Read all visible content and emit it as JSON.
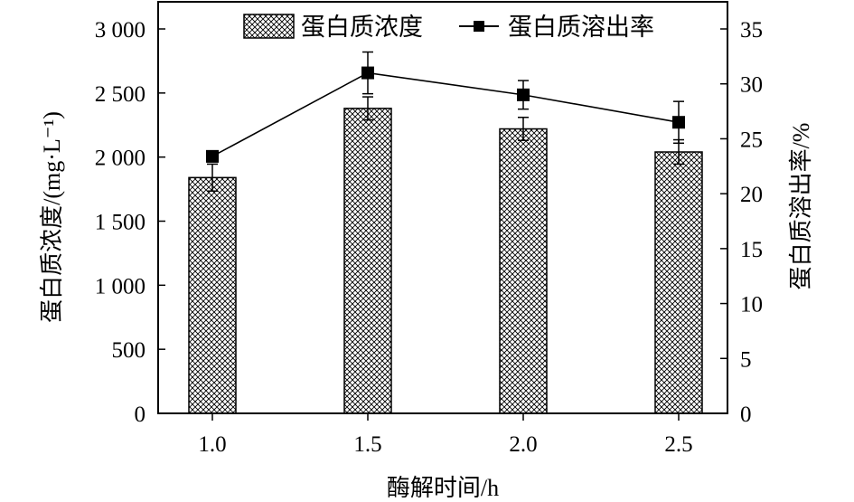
{
  "chart_data": {
    "type": "bar+line",
    "categories": [
      "1.0",
      "1.5",
      "2.0",
      "2.5"
    ],
    "xlabel": "酶解时间/h",
    "ylabel_left": "蛋白质浓度/(mg·L⁻¹)",
    "ylabel_right": "蛋白质溶出率/%",
    "ylim_left": [
      0,
      3000
    ],
    "ylim_right": [
      0,
      35
    ],
    "yticks_left": [
      "0",
      "500",
      "1 000",
      "1 500",
      "2 000",
      "2 500",
      "3 000"
    ],
    "yticks_right": [
      "0",
      "5",
      "10",
      "15",
      "20",
      "25",
      "30",
      "35"
    ],
    "legend_position": "top",
    "series": [
      {
        "name": "蛋白质浓度",
        "kind": "bar",
        "axis": "left",
        "pattern": "crosshatch",
        "values": [
          1840,
          2380,
          2220,
          2040
        ],
        "errors": [
          105,
          90,
          90,
          95
        ]
      },
      {
        "name": "蛋白质溶出率",
        "kind": "line",
        "axis": "right",
        "marker": "square",
        "values": [
          23.4,
          31.0,
          29.0,
          26.5
        ],
        "errors": [
          0.5,
          1.9,
          1.3,
          1.9
        ]
      }
    ]
  }
}
